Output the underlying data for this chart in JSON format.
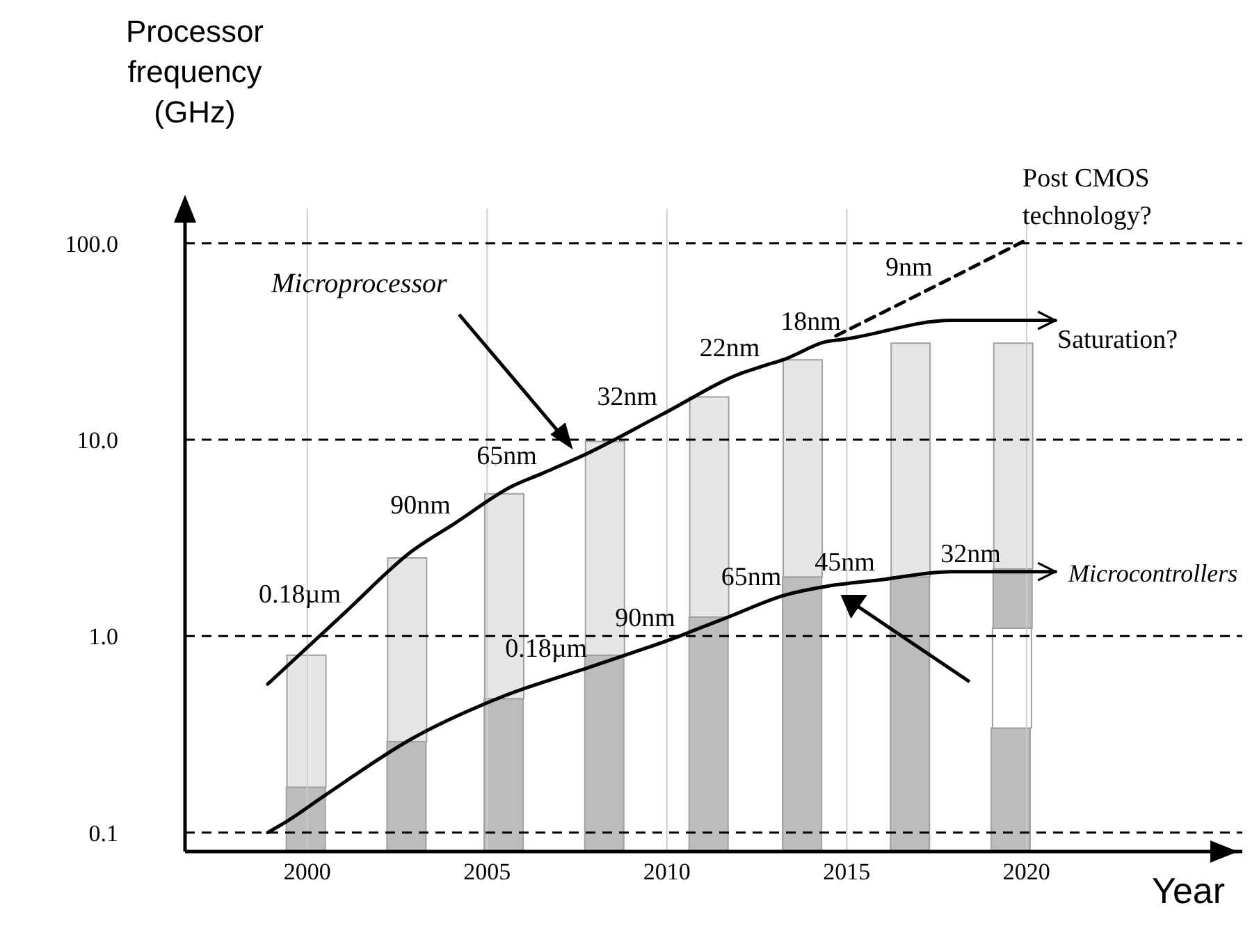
{
  "chart_data": {
    "type": "bar",
    "ylabel": "Processor frequency (GHz)",
    "xlabel": "Year",
    "log": "y",
    "grid": true,
    "stacked": true,
    "x": [
      2000,
      2002.8,
      2005.5,
      2008.3,
      2011.2,
      2013.8,
      2016.8,
      2019.6
    ],
    "xlim": [
      1996.6,
      2026
    ],
    "xticks": [
      2000,
      2005,
      2010,
      2015,
      2020
    ],
    "ylim": [
      0.08,
      150
    ],
    "yticks": [
      0.1,
      {
        "value": 1,
        "label": "1.0"
      },
      {
        "value": 10,
        "label": "10.0"
      },
      {
        "value": 100,
        "label": "100.0"
      }
    ],
    "series": [
      {
        "color": "#bcbcbc",
        "values": [
          0.17,
          0.29,
          0.48,
          0.8,
          1.25,
          2,
          2,
          0.34
        ]
      },
      {
        "color": "#e6e6e6",
        "values": [
          0.63,
          2.21,
          4.82,
          9.0,
          15.25,
          23.5,
          29,
          null
        ]
      },
      {
        "color": "#ffffff",
        "values": [
          null,
          null,
          null,
          null,
          null,
          null,
          null,
          0.76
        ]
      },
      {
        "color": "#bcbcbc",
        "values": [
          null,
          null,
          null,
          null,
          null,
          null,
          null,
          1.1
        ]
      },
      {
        "color": "#e6e6e6",
        "values": [
          null,
          null,
          null,
          null,
          null,
          null,
          null,
          28.8
        ]
      },
      {
        "type": "line",
        "name": "Microprocessor",
        "color": "#000000",
        "line_style": "solid",
        "x": [
          1998.9,
          2001.05,
          2002.9,
          2004.1,
          2005.7,
          2006.5,
          2007.6,
          2009.85,
          2012.1,
          2012.7,
          2013.3,
          2014.4,
          2014.95,
          2017.9,
          2020.8
        ],
        "values": [
          0.57,
          1.32,
          2.7,
          3.75,
          5.8,
          6.7,
          8.2,
          13.4,
          21.9,
          23.8,
          25.8,
          31.5,
          32.5,
          40.5,
          40.5
        ]
      },
      {
        "type": "line",
        "color": "#000000",
        "line_style": "dashed",
        "x": [
          2014.7,
          2017.5,
          2019.9
        ],
        "values": [
          33.8,
          61,
          102
        ]
      },
      {
        "type": "line",
        "name": "Microcontrollers",
        "color": "#000000",
        "line_style": "solid",
        "x": [
          1998.9,
          1999.4,
          2000.5,
          2002.9,
          2005.4,
          2007.9,
          2009.1,
          2010.35,
          2010.7,
          2011.7,
          2013.3,
          2014.5,
          2015.9,
          2017.9,
          2019.4,
          2020.8
        ],
        "values": [
          0.1,
          0.113,
          0.155,
          0.3,
          0.49,
          0.7,
          0.83,
          1.0,
          1.06,
          1.25,
          1.62,
          1.8,
          1.93,
          2.13,
          2.13,
          2.13
        ]
      }
    ],
    "annotations": [
      {
        "text": "0.18µm",
        "x": 2001.05,
        "y": 1.32
      },
      {
        "text": "90nm",
        "x": 2004.1,
        "y": 3.75
      },
      {
        "text": "65nm",
        "x": 2006.5,
        "y": 6.7
      },
      {
        "text": "32nm",
        "x": 2009.85,
        "y": 13.4
      },
      {
        "text": "22nm",
        "x": 2012.7,
        "y": 23.8
      },
      {
        "text": "18nm",
        "x": 2014.95,
        "y": 32.5
      },
      {
        "text": "9nm",
        "x": 2017.5,
        "y": 61
      },
      {
        "text": "0.18µm",
        "x": 2007.9,
        "y": 0.7
      },
      {
        "text": "90nm",
        "x": 2010.35,
        "y": 1.0
      },
      {
        "text": "65nm",
        "x": 2013.3,
        "y": 1.62
      },
      {
        "text": "45nm",
        "x": 2015.9,
        "y": 1.93
      },
      {
        "text": "32nm",
        "x": 2019.4,
        "y": 2.13
      },
      "Saturation?",
      "Post CMOS technology?"
    ]
  }
}
